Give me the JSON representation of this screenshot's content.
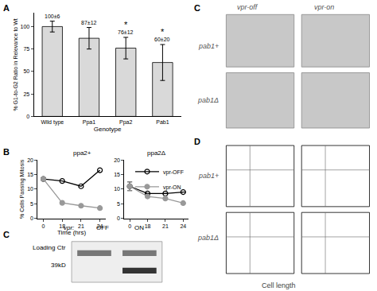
{
  "chart_data": [
    {
      "type": "bar",
      "x_label": "Genotype",
      "y_label": "% G1-to-G2 Ratio in Relevance to Wt",
      "categories": [
        "Wild type",
        "Ppa1",
        "Ppa2",
        "Pab1"
      ],
      "values": [
        100,
        87,
        76,
        60
      ],
      "errors": [
        6,
        12,
        12,
        20
      ],
      "value_labels": [
        "100±6",
        "87±12",
        "76±12",
        "60±20"
      ],
      "data_labels": true,
      "color": "#d9d9d9",
      "ylim": [
        0,
        115
      ],
      "yticks": [
        0,
        25,
        50,
        75,
        100
      ],
      "annotations": [
        {
          "category": "Ppa2",
          "text": "*"
        },
        {
          "category": "Pab1",
          "text": "*"
        }
      ]
    },
    {
      "type": "line",
      "title": "ppa2+",
      "x_label": "Time (hrs)",
      "y_label": "% Cells Passing Mitosis",
      "categories": [
        "0",
        "18",
        "21",
        "24"
      ],
      "series": [
        {
          "name": "vpr-OFF",
          "color": "#000000",
          "marker": "open",
          "values": [
            13.5,
            12.8,
            11,
            16.5
          ]
        },
        {
          "name": "vpr-ON",
          "color": "#999999",
          "marker": "filled",
          "values": [
            13.5,
            5.3,
            4.3,
            3.5
          ]
        }
      ],
      "ylim": [
        0,
        20
      ],
      "yticks": [
        0,
        5,
        10,
        15,
        20
      ]
    },
    {
      "type": "line",
      "title": "ppa2Δ",
      "categories": [
        "0",
        "18",
        "21",
        "24"
      ],
      "series": [
        {
          "name": "vpr-OFF",
          "color": "#000000",
          "marker": "open",
          "values": [
            11,
            8.5,
            8.5,
            9
          ],
          "errors": [
            1.5,
            null,
            null,
            null
          ]
        },
        {
          "name": "vpr-ON",
          "color": "#999999",
          "marker": "filled",
          "values": [
            11,
            7.5,
            6.8,
            5.2
          ],
          "errors": [
            1.5,
            null,
            null,
            null
          ]
        }
      ],
      "ylim": [
        0,
        20
      ],
      "yticks": [
        0,
        5,
        10,
        15,
        20
      ],
      "legend": "upper right"
    }
  ],
  "panels": {
    "labels": [
      "A",
      "B",
      "C",
      "C",
      "D"
    ],
    "blot": {
      "prefix": "vpr:",
      "lanes": [
        "OFF",
        "ON"
      ],
      "bands": [
        {
          "label": "Loading Ctr",
          "lanes": [
            "OFF",
            "ON"
          ]
        },
        {
          "label": "39kD",
          "lanes": [
            "ON"
          ]
        }
      ]
    },
    "micrographs": {
      "columns": [
        "vpr-off",
        "vpr-on"
      ],
      "rows": [
        "pab1+",
        "pab1Δ"
      ]
    },
    "flow": {
      "rows": [
        "pab1+",
        "pab1Δ"
      ],
      "x_label": "Cell length"
    }
  }
}
